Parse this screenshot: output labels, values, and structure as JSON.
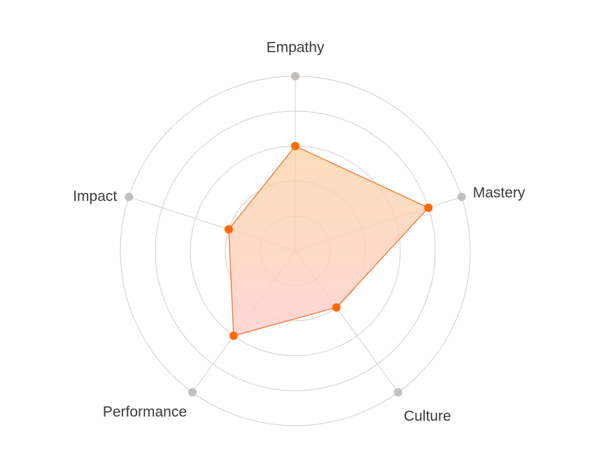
{
  "chart_data": {
    "type": "radar",
    "axes": [
      "Empathy",
      "Mastery",
      "Culture",
      "Performance",
      "Impact"
    ],
    "rings": 5,
    "max": 5,
    "series": [
      {
        "values": [
          3,
          4,
          2,
          3,
          2
        ]
      }
    ],
    "colors": {
      "grid": "#cfcdcb",
      "axis_marker": "#c4c0bd",
      "line": "#f26b1d",
      "point": "#ff6a00",
      "fill_top": "#fbd2a2",
      "fill_bottom": "#fdd0cf",
      "label": "#3a3a3a"
    }
  }
}
